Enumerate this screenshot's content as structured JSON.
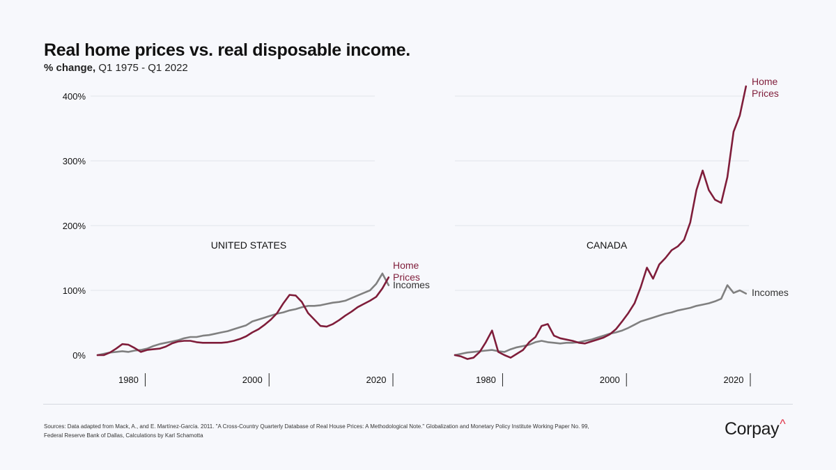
{
  "title": "Real home prices vs. real disposable income.",
  "subtitle_lead": "% change,",
  "subtitle_rest": " Q1 1975 - Q1 2022",
  "source_line1": "Sources: Data adapted from Mack, A., and E. Martínez-García. 2011. \"A Cross-Country Quarterly Database of Real House Prices: A Methodological Note.\" Globalization and Monetary Policy Institute Working Paper No. 99,",
  "source_line2": "Federal Reserve Bank of Dallas, Calculations by Karl Schamotta",
  "logo_text": "Corpay",
  "logo_mark": "^",
  "colors": {
    "home_prices": "#7f1d3a",
    "incomes": "#808080",
    "gridline": "#e2e4ea",
    "axis_text": "#111111"
  },
  "chart_data": {
    "type": "line",
    "title": "Real home prices vs. real disposable income.",
    "ylabel": "% change",
    "ylim": [
      -10,
      420
    ],
    "y_ticks": [
      0,
      100,
      200,
      300,
      400
    ],
    "y_tick_labels": [
      "0%",
      "100%",
      "200%",
      "300%",
      "400%"
    ],
    "x_range": [
      1975,
      2022.25
    ],
    "x_ticks": [
      1980,
      2000,
      2020
    ],
    "x_tick_labels": [
      "1980",
      "2000",
      "2020"
    ],
    "grid": true,
    "panels": [
      {
        "name": "UNITED STATES",
        "series": [
          {
            "name": "Home Prices",
            "label_lines": [
              "Home",
              "Prices"
            ],
            "x": [
              1975,
              1976,
              1977,
              1978,
              1979,
              1980,
              1981,
              1982,
              1983,
              1984,
              1985,
              1986,
              1987,
              1988,
              1989,
              1990,
              1991,
              1992,
              1993,
              1994,
              1995,
              1996,
              1997,
              1998,
              1999,
              2000,
              2001,
              2002,
              2003,
              2004,
              2005,
              2006,
              2007,
              2008,
              2009,
              2010,
              2011,
              2012,
              2013,
              2014,
              2015,
              2016,
              2017,
              2018,
              2019,
              2020,
              2021,
              2022
            ],
            "values": [
              0,
              0,
              4,
              10,
              17,
              16,
              11,
              5,
              8,
              9,
              10,
              13,
              18,
              21,
              22,
              22,
              20,
              19,
              19,
              19,
              19,
              20,
              22,
              25,
              29,
              35,
              40,
              47,
              55,
              65,
              80,
              93,
              92,
              82,
              65,
              55,
              45,
              44,
              48,
              54,
              61,
              67,
              74,
              79,
              84,
              90,
              103,
              120
            ]
          },
          {
            "name": "Incomes",
            "label_lines": [
              "Incomes"
            ],
            "x": [
              1975,
              1976,
              1977,
              1978,
              1979,
              1980,
              1981,
              1982,
              1983,
              1984,
              1985,
              1986,
              1987,
              1988,
              1989,
              1990,
              1991,
              1992,
              1993,
              1994,
              1995,
              1996,
              1997,
              1998,
              1999,
              2000,
              2001,
              2002,
              2003,
              2004,
              2005,
              2006,
              2007,
              2008,
              2009,
              2010,
              2011,
              2012,
              2013,
              2014,
              2015,
              2016,
              2017,
              2018,
              2019,
              2020,
              2021,
              2022
            ],
            "values": [
              0,
              2,
              4,
              5,
              6,
              5,
              7,
              8,
              10,
              14,
              17,
              19,
              21,
              23,
              26,
              28,
              28,
              30,
              31,
              33,
              35,
              37,
              40,
              43,
              46,
              52,
              55,
              58,
              61,
              64,
              66,
              69,
              71,
              74,
              76,
              76,
              77,
              79,
              81,
              82,
              84,
              88,
              92,
              96,
              100,
              110,
              126,
              108
            ]
          }
        ]
      },
      {
        "name": "CANADA",
        "series": [
          {
            "name": "Home Prices",
            "label_lines": [
              "Home",
              "Prices"
            ],
            "x": [
              1975,
              1976,
              1977,
              1978,
              1979,
              1980,
              1981,
              1982,
              1983,
              1984,
              1985,
              1986,
              1987,
              1988,
              1989,
              1990,
              1991,
              1992,
              1993,
              1994,
              1995,
              1996,
              1997,
              1998,
              1999,
              2000,
              2001,
              2002,
              2003,
              2004,
              2005,
              2006,
              2007,
              2008,
              2009,
              2010,
              2011,
              2012,
              2013,
              2014,
              2015,
              2016,
              2017,
              2018,
              2019,
              2020,
              2021,
              2022
            ],
            "values": [
              0,
              -2,
              -6,
              -4,
              5,
              20,
              38,
              5,
              0,
              -4,
              2,
              8,
              20,
              28,
              45,
              48,
              30,
              26,
              24,
              22,
              19,
              18,
              21,
              24,
              27,
              32,
              40,
              52,
              65,
              80,
              105,
              135,
              118,
              140,
              150,
              162,
              168,
              178,
              205,
              255,
              285,
              255,
              240,
              235,
              275,
              345,
              370,
              415
            ]
          },
          {
            "name": "Incomes",
            "label_lines": [
              "Incomes"
            ],
            "x": [
              1975,
              1976,
              1977,
              1978,
              1979,
              1980,
              1981,
              1982,
              1983,
              1984,
              1985,
              1986,
              1987,
              1988,
              1989,
              1990,
              1991,
              1992,
              1993,
              1994,
              1995,
              1996,
              1997,
              1998,
              1999,
              2000,
              2001,
              2002,
              2003,
              2004,
              2005,
              2006,
              2007,
              2008,
              2009,
              2010,
              2011,
              2012,
              2013,
              2014,
              2015,
              2016,
              2017,
              2018,
              2019,
              2020,
              2021,
              2022
            ],
            "values": [
              0,
              2,
              4,
              5,
              6,
              7,
              8,
              6,
              5,
              9,
              12,
              14,
              16,
              20,
              22,
              20,
              19,
              18,
              19,
              19,
              20,
              22,
              24,
              27,
              30,
              33,
              35,
              38,
              42,
              47,
              52,
              55,
              58,
              61,
              64,
              66,
              69,
              71,
              73,
              76,
              78,
              80,
              83,
              87,
              108,
              96,
              100,
              95
            ]
          }
        ]
      }
    ]
  }
}
